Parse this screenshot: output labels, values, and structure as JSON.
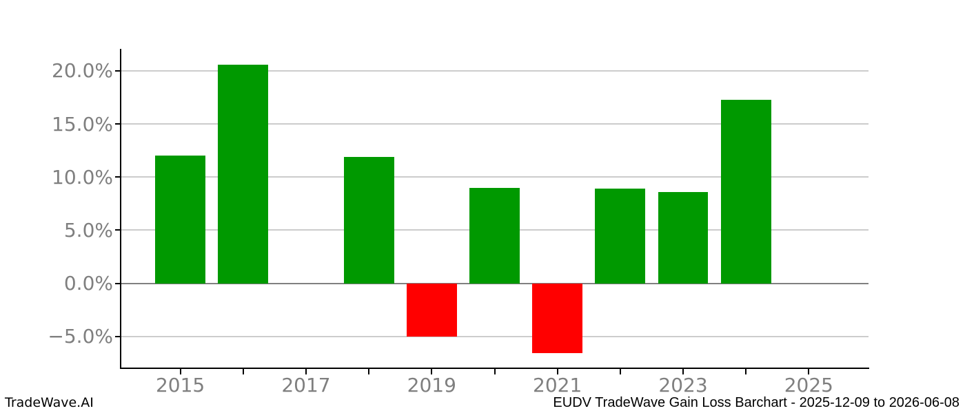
{
  "footer": {
    "left": "TradeWave.AI",
    "right": "EUDV TradeWave Gain Loss Barchart - 2025-12-09 to 2026-06-08"
  },
  "chart_data": {
    "type": "bar",
    "title": "EUDV TradeWave Gain Loss Barchart - 2025-12-09 to 2026-06-08",
    "watermark": "TradeWave.AI",
    "categories": [
      2015,
      2016,
      2017,
      2018,
      2019,
      2020,
      2021,
      2022,
      2023,
      2024
    ],
    "values": [
      12.0,
      20.6,
      0.0,
      11.9,
      -5.0,
      9.0,
      -6.6,
      8.9,
      8.6,
      17.3
    ],
    "unit": "%",
    "xlabel": "",
    "ylabel": "",
    "xlim": [
      2014.05,
      2025.95
    ],
    "ylim": [
      -8,
      22
    ],
    "y_ticks": [
      20,
      15,
      10,
      5,
      0,
      -5
    ],
    "y_tick_labels": [
      "20.0%",
      "15.0%",
      "10.0%",
      "5.0%",
      "0.0%",
      "−5.0%"
    ],
    "x_ticks": [
      2015,
      2016,
      2017,
      2018,
      2019,
      2020,
      2021,
      2022,
      2023,
      2024,
      2025
    ],
    "x_tick_labels": [
      "2015",
      "2017",
      "2019",
      "2021",
      "2023",
      "2025"
    ],
    "grid": true,
    "legend": false,
    "bar_width_years": 0.8,
    "colors": {
      "positive": "#009900",
      "negative": "#ff0000",
      "grid": "#cccccc",
      "zero_line": "#808080",
      "tick_label": "#7f7f7f",
      "spine": "#000000",
      "background": "#ffffff"
    }
  }
}
